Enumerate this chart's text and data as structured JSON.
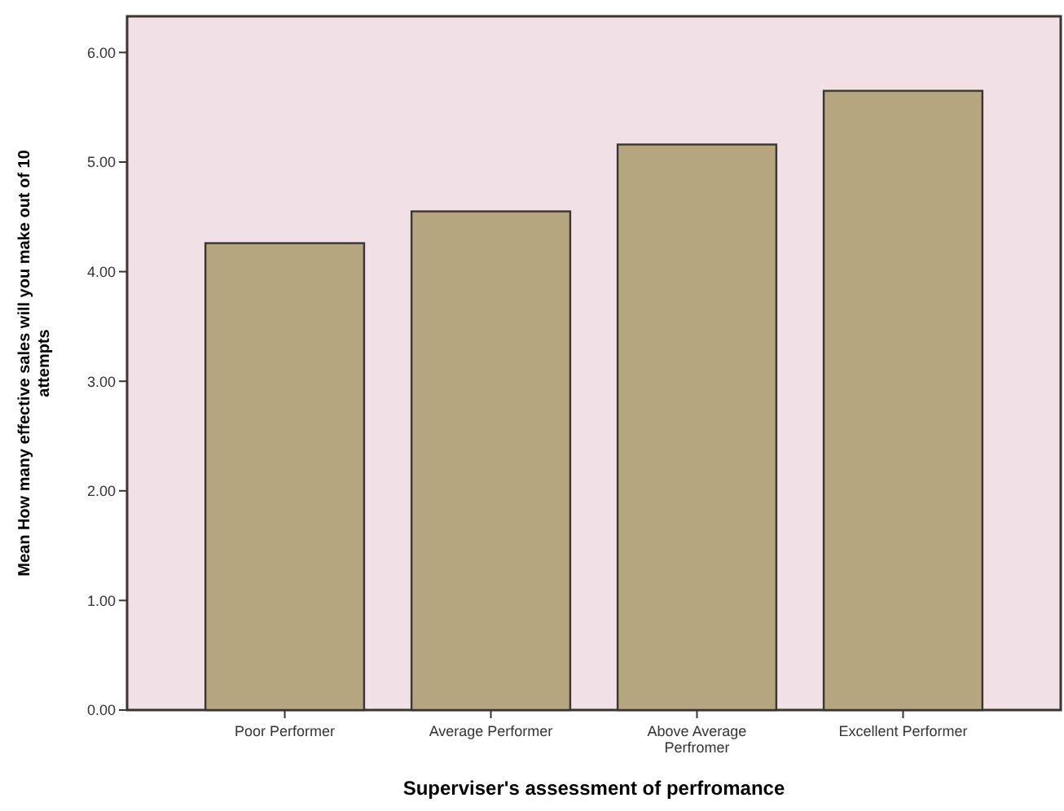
{
  "chart_data": {
    "type": "bar",
    "xlabel": "Superviser's assessment of perfromance",
    "ylabel": "Mean How many effective sales will you make out of 10 attempts",
    "categories": [
      "Poor Performer",
      "Average Performer",
      "Above Average Perfromer",
      "Excellent Performer"
    ],
    "values": [
      4.26,
      4.55,
      5.16,
      5.65
    ],
    "color": "#b5a67f",
    "ylim": [
      0,
      6.33
    ],
    "yticks": [
      {
        "value": 0,
        "label": "0.00"
      },
      {
        "value": 1,
        "label": "1.00"
      },
      {
        "value": 2,
        "label": "2.00"
      },
      {
        "value": 3,
        "label": "3.00"
      },
      {
        "value": 4,
        "label": "4.00"
      },
      {
        "value": 5,
        "label": "5.00"
      },
      {
        "value": 6,
        "label": "6.00"
      }
    ],
    "grid": false
  }
}
